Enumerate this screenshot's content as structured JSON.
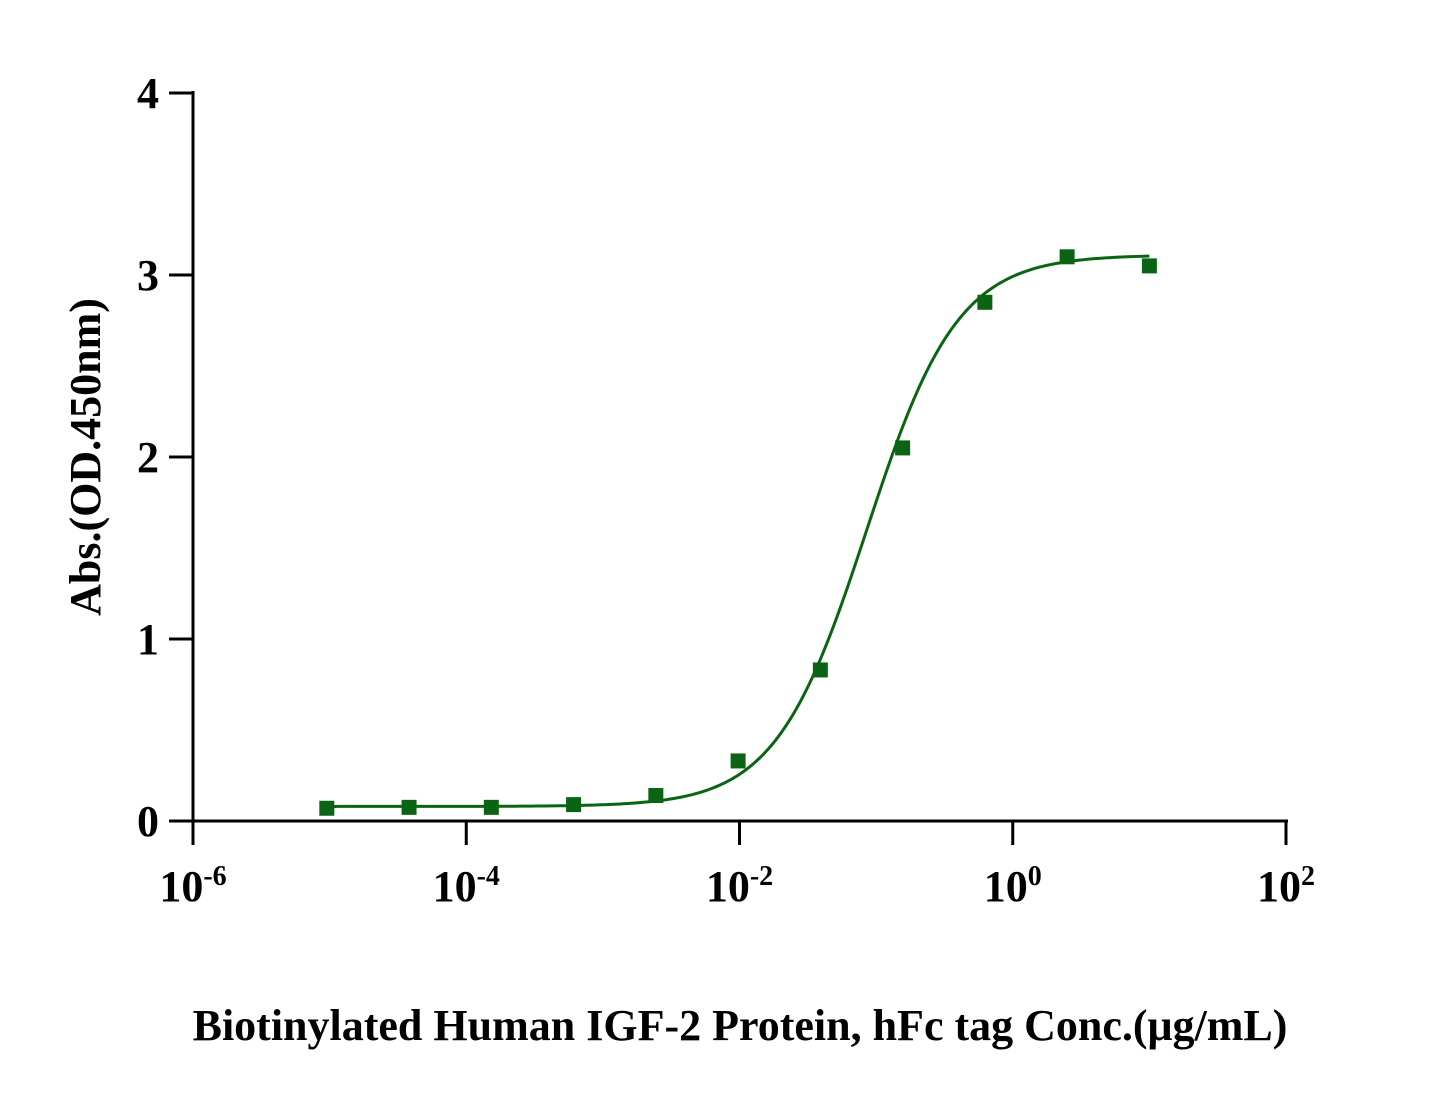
{
  "chart_data": {
    "type": "scatter",
    "xlabel": "Biotinylated Human IGF-2 Protein, hFc tag Conc.(μg/mL)",
    "ylabel": "Abs.(OD.450nm)",
    "xscale": "log",
    "x": [
      9.5367e-06,
      3.8147e-05,
      0.00015259,
      0.00061035,
      0.0024414,
      0.0097656,
      0.039063,
      0.15625,
      0.625,
      2.5,
      10
    ],
    "series": [
      {
        "color": "#0b6414",
        "values": [
          0.07,
          0.075,
          0.075,
          0.09,
          0.14,
          0.33,
          0.83,
          2.05,
          2.85,
          3.1,
          3.05
        ],
        "fit": {
          "model": "4pl",
          "bottom": 0.08,
          "top": 3.11,
          "ec50": 0.085,
          "hill": 1.3
        }
      }
    ],
    "xlim": [
      1e-06,
      100
    ],
    "xticks": [
      {
        "value": 1e-06,
        "label": "10-6"
      },
      {
        "value": 0.0001,
        "label": "10-4"
      },
      {
        "value": 0.01,
        "label": "10-2"
      },
      {
        "value": 1,
        "label": "100"
      },
      {
        "value": 100,
        "label": "102"
      }
    ],
    "ylim": [
      0,
      4
    ],
    "yticks": [
      0,
      1,
      2,
      3,
      4
    ]
  }
}
